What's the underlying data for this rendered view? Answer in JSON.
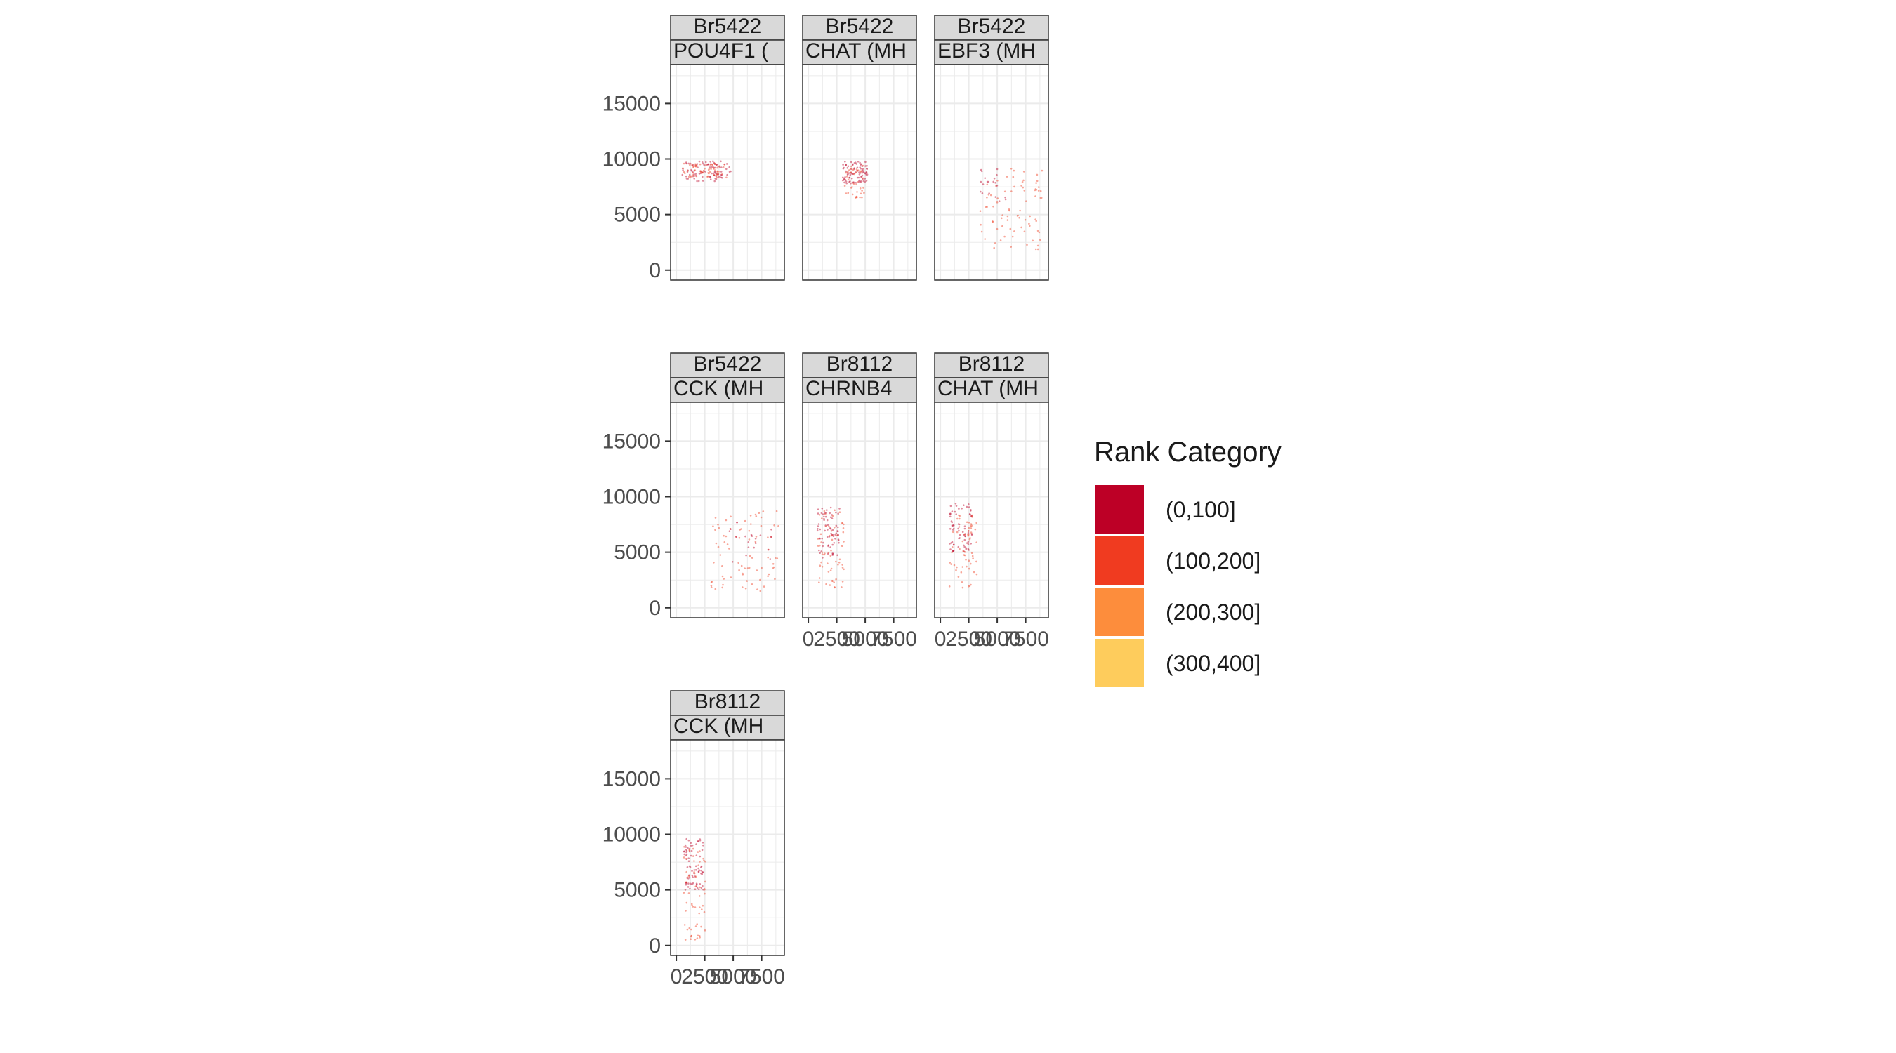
{
  "chart_data": {
    "type": "scatter",
    "title": "",
    "xlabel": "",
    "ylabel": "",
    "facet_strip_rows": 2,
    "x_ticks": [
      0,
      2500,
      5000,
      7500
    ],
    "x_tick_labels": [
      "0",
      "2500",
      "5000",
      "7500"
    ],
    "x_overlapped_label_text": "0250050007500",
    "xlim": [
      -500,
      9500
    ],
    "y_ticks": [
      0,
      5000,
      10000,
      15000
    ],
    "y_tick_labels": [
      "0",
      "5000",
      "10000",
      "15000"
    ],
    "ylim": [
      -900,
      18500
    ],
    "grid": true,
    "legend": {
      "title": "Rank Category",
      "placement": "right",
      "entries": [
        {
          "label": "(0,100]",
          "color": "#bd0026"
        },
        {
          "label": "(100,200]",
          "color": "#f03b20"
        },
        {
          "label": "(200,300]",
          "color": "#fd8d3c"
        },
        {
          "label": "(300,400]",
          "color": "#fecc5c"
        }
      ]
    },
    "panels": [
      {
        "sample": "Br5422",
        "gene": "POU4F1",
        "gene_visible": "POU4F1 (",
        "clusters": [
          {
            "x": [
              500,
              4800
            ],
            "y": [
              8000,
              9800
            ],
            "n": 90,
            "rank": 0
          },
          {
            "x": [
              500,
              4500
            ],
            "y": [
              8300,
              9600
            ],
            "n": 60,
            "rank": 1
          }
        ]
      },
      {
        "sample": "Br5422",
        "gene": "CHAT",
        "gene_visible": "CHAT (MH",
        "clusters": [
          {
            "x": [
              3000,
              5200
            ],
            "y": [
              7800,
              9800
            ],
            "n": 90,
            "rank": 0
          },
          {
            "x": [
              3200,
              5000
            ],
            "y": [
              6500,
              9400
            ],
            "n": 40,
            "rank": 1
          }
        ]
      },
      {
        "sample": "Br5422",
        "gene": "EBF3",
        "gene_visible": "EBF3 (MH",
        "clusters": [
          {
            "x": [
              3500,
              9000
            ],
            "y": [
              1800,
              9200
            ],
            "n": 80,
            "rank": 1
          },
          {
            "x": [
              3500,
              6000
            ],
            "y": [
              6000,
              9300
            ],
            "n": 20,
            "rank": 0
          }
        ]
      },
      {
        "sample": "Br5422",
        "gene": "CCK",
        "gene_visible": "CCK (MH",
        "clusters": [
          {
            "x": [
              3000,
              9000
            ],
            "y": [
              1500,
              9000
            ],
            "n": 80,
            "rank": 1
          },
          {
            "x": [
              4500,
              8500
            ],
            "y": [
              4000,
              7800
            ],
            "n": 20,
            "rank": 0
          }
        ]
      },
      {
        "sample": "Br8112",
        "gene": "CHRNB4",
        "gene_visible": "CHRNB4",
        "clusters": [
          {
            "x": [
              800,
              2800
            ],
            "y": [
              4500,
              9200
            ],
            "n": 70,
            "rank": 0
          },
          {
            "x": [
              800,
              3200
            ],
            "y": [
              1800,
              9000
            ],
            "n": 60,
            "rank": 1
          }
        ]
      },
      {
        "sample": "Br8112",
        "gene": "CHAT",
        "gene_visible": "CHAT (MH",
        "clusters": [
          {
            "x": [
              800,
              2800
            ],
            "y": [
              5000,
              9400
            ],
            "n": 70,
            "rank": 0
          },
          {
            "x": [
              800,
              3200
            ],
            "y": [
              1800,
              9000
            ],
            "n": 60,
            "rank": 1
          }
        ]
      },
      {
        "sample": "Br8112",
        "gene": "CCK",
        "gene_visible": "CCK (MH",
        "clusters": [
          {
            "x": [
              600,
              2400
            ],
            "y": [
              5000,
              9600
            ],
            "n": 80,
            "rank": 0
          },
          {
            "x": [
              600,
              2600
            ],
            "y": [
              500,
              9000
            ],
            "n": 60,
            "rank": 1
          }
        ]
      }
    ]
  }
}
